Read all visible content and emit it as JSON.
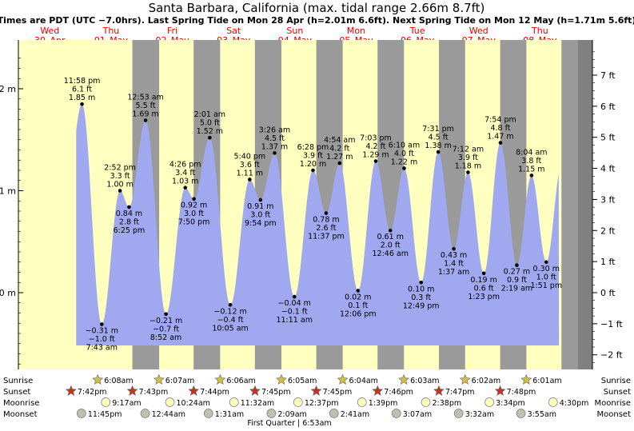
{
  "title": "Santa Barbara, California (max. tidal range 2.66m 8.7ft)",
  "subtitle": "Times are PDT (UTC −7.0hrs). Last Spring Tide on Mon 28 Apr (h=2.01m 6.6ft). Next Spring Tide on Mon 12 May (h=1.71m 5.6ft)",
  "colors": {
    "day": "#ffffc0",
    "night": "#9a9a9a",
    "tide": "#a0a8f0",
    "grid": "#000000",
    "day_label": "#e00000",
    "sun": "#d4c040",
    "sunset": "#c83020",
    "moonrise": "#ffffc0",
    "moonset": "#c0c0b0"
  },
  "days": [
    {
      "dow": "Wed",
      "date": "30–Apr"
    },
    {
      "dow": "Thu",
      "date": "01–May"
    },
    {
      "dow": "Fri",
      "date": "02–May"
    },
    {
      "dow": "Sat",
      "date": "03–May"
    },
    {
      "dow": "Sun",
      "date": "04–May"
    },
    {
      "dow": "Mon",
      "date": "05–May"
    },
    {
      "dow": "Tue",
      "date": "06–May"
    },
    {
      "dow": "Wed",
      "date": "07–May"
    },
    {
      "dow": "Thu",
      "date": "08–May"
    }
  ],
  "chart_data": {
    "type": "area",
    "x_unit": "hours from 30-Apr 00:00 PDT",
    "y_unit": "m",
    "ylim": [
      -0.75,
      2.45
    ],
    "left_ticks": [
      "2 m",
      "1 m",
      "0 m"
    ],
    "left_tick_values": [
      2,
      1,
      0
    ],
    "right_ticks": [
      "7 ft",
      "6 ft",
      "5 ft",
      "4 ft",
      "3 ft",
      "2 ft",
      "1 ft",
      "0 ft",
      "−1 ft",
      "−2 ft"
    ],
    "right_tick_values": [
      7,
      6,
      5,
      4,
      3,
      2,
      1,
      0,
      -1,
      -2
    ],
    "nights": [
      {
        "start": 43.7,
        "end": 54.2
      },
      {
        "start": 67.7,
        "end": 78.1
      },
      {
        "start": 91.7,
        "end": 102.1
      },
      {
        "start": 115.75,
        "end": 126.1
      },
      {
        "start": 139.75,
        "end": 150.1
      },
      {
        "start": 163.8,
        "end": 174.05
      },
      {
        "start": 187.8,
        "end": 198.05
      },
      {
        "start": 211.8,
        "end": 222.0
      },
      {
        "start": 235.8,
        "end": 999
      }
    ],
    "extremes": [
      {
        "t": 23.97,
        "h": 1.85,
        "time": "11:58 pm",
        "ft": "6.1 ft",
        "m": "1.85 m",
        "type": "high"
      },
      {
        "t": 31.72,
        "h": -0.31,
        "time": "7:43 am",
        "ft": "−1.0 ft",
        "m": "−0.31 m",
        "type": "low"
      },
      {
        "t": 38.87,
        "h": 1.0,
        "time": "2:52 pm",
        "ft": "3.3 ft",
        "m": "1.00 m",
        "type": "high"
      },
      {
        "t": 42.42,
        "h": 0.84,
        "time": "6:25 pm",
        "ft": "2.8 ft",
        "m": "0.84 m",
        "type": "low"
      },
      {
        "t": 48.88,
        "h": 1.69,
        "time": "12:53 am",
        "ft": "5.5 ft",
        "m": "1.69 m",
        "type": "high"
      },
      {
        "t": 56.87,
        "h": -0.21,
        "time": "8:52 am",
        "ft": "−0.7 ft",
        "m": "−0.21 m",
        "type": "low"
      },
      {
        "t": 64.43,
        "h": 1.03,
        "time": "4:26 pm",
        "ft": "3.4 ft",
        "m": "1.03 m",
        "type": "high"
      },
      {
        "t": 67.83,
        "h": 0.92,
        "time": "7:50 pm",
        "ft": "3.0 ft",
        "m": "0.92 m",
        "type": "low"
      },
      {
        "t": 74.02,
        "h": 1.52,
        "time": "2:01 am",
        "ft": "5.0 ft",
        "m": "1.52 m",
        "type": "high"
      },
      {
        "t": 82.08,
        "h": -0.12,
        "time": "10:05 am",
        "ft": "−0.4 ft",
        "m": "−0.12 m",
        "type": "low"
      },
      {
        "t": 89.67,
        "h": 1.11,
        "time": "5:40 pm",
        "ft": "3.6 ft",
        "m": "1.11 m",
        "type": "high"
      },
      {
        "t": 93.9,
        "h": 0.91,
        "time": "9:54 pm",
        "ft": "3.0 ft",
        "m": "0.91 m",
        "type": "low"
      },
      {
        "t": 99.43,
        "h": 1.37,
        "time": "3:26 am",
        "ft": "4.5 ft",
        "m": "1.37 m",
        "type": "high"
      },
      {
        "t": 107.18,
        "h": -0.04,
        "time": "11:11 am",
        "ft": "−0.1 ft",
        "m": "−0.04 m",
        "type": "low"
      },
      {
        "t": 114.47,
        "h": 1.2,
        "time": "6:28 pm",
        "ft": "3.9 ft",
        "m": "1.20 m",
        "type": "high"
      },
      {
        "t": 119.62,
        "h": 0.78,
        "time": "11:37 pm",
        "ft": "2.6 ft",
        "m": "0.78 m",
        "type": "low"
      },
      {
        "t": 124.9,
        "h": 1.27,
        "time": "4:54 am",
        "ft": "4.2 ft",
        "m": "1.27 m",
        "type": "high"
      },
      {
        "t": 132.1,
        "h": 0.02,
        "time": "12:06 pm",
        "ft": "0.1 ft",
        "m": "0.02 m",
        "type": "low"
      },
      {
        "t": 139.05,
        "h": 1.29,
        "time": "7:03 pm",
        "ft": "4.2 ft",
        "m": "1.29 m",
        "type": "high"
      },
      {
        "t": 144.77,
        "h": 0.61,
        "time": "12:46 am",
        "ft": "2.0 ft",
        "m": "0.61 m",
        "type": "low"
      },
      {
        "t": 150.17,
        "h": 1.22,
        "time": "6:10 am",
        "ft": "4.0 ft",
        "m": "1.22 m",
        "type": "high"
      },
      {
        "t": 156.82,
        "h": 0.1,
        "time": "12:49 pm",
        "ft": "0.3 ft",
        "m": "0.10 m",
        "type": "low"
      },
      {
        "t": 163.52,
        "h": 1.38,
        "time": "7:31 pm",
        "ft": "4.5 ft",
        "m": "1.38 m",
        "type": "high"
      },
      {
        "t": 169.62,
        "h": 0.43,
        "time": "1:37 am",
        "ft": "1.4 ft",
        "m": "0.43 m",
        "type": "low"
      },
      {
        "t": 175.2,
        "h": 1.18,
        "time": "7:12 am",
        "ft": "3.9 ft",
        "m": "1.18 m",
        "type": "high"
      },
      {
        "t": 181.38,
        "h": 0.19,
        "time": "1:23 pm",
        "ft": "0.6 ft",
        "m": "0.19 m",
        "type": "low"
      },
      {
        "t": 187.9,
        "h": 1.47,
        "time": "7:54 pm",
        "ft": "4.8 ft",
        "m": "1.47 m",
        "type": "high"
      },
      {
        "t": 194.32,
        "h": 0.27,
        "time": "2:19 am",
        "ft": "0.9 ft",
        "m": "0.27 m",
        "type": "low"
      },
      {
        "t": 200.07,
        "h": 1.15,
        "time": "8:04 am",
        "ft": "3.8 ft",
        "m": "1.15 m",
        "type": "high"
      },
      {
        "t": 205.85,
        "h": 0.3,
        "time": "1:51 pm",
        "ft": "1.0 ft",
        "m": "0.30 m",
        "type": "low"
      }
    ]
  },
  "astro": {
    "labels": {
      "sunrise": "Sunrise",
      "sunset": "Sunset",
      "moonrise": "Moonrise",
      "moonset": "Moonset"
    },
    "sunrise": [
      {
        "t": 30.13,
        "text": "6:08am"
      },
      {
        "t": 54.12,
        "text": "6:07am"
      },
      {
        "t": 78.1,
        "text": "6:06am"
      },
      {
        "t": 102.08,
        "text": "6:05am"
      },
      {
        "t": 126.07,
        "text": "6:04am"
      },
      {
        "t": 150.05,
        "text": "6:03am"
      },
      {
        "t": 174.03,
        "text": "6:02am"
      },
      {
        "t": 198.02,
        "text": "6:01am"
      }
    ],
    "sunset": [
      {
        "t": 19.7,
        "text": "7:42pm"
      },
      {
        "t": 43.72,
        "text": "7:43pm"
      },
      {
        "t": 67.73,
        "text": "7:44pm"
      },
      {
        "t": 91.75,
        "text": "7:45pm"
      },
      {
        "t": 115.75,
        "text": "7:45pm"
      },
      {
        "t": 139.77,
        "text": "7:46pm"
      },
      {
        "t": 163.78,
        "text": "7:47pm"
      },
      {
        "t": 187.8,
        "text": "7:48pm"
      }
    ],
    "moonrise": [
      {
        "t": 33.28,
        "text": "9:17am"
      },
      {
        "t": 58.4,
        "text": "10:24am"
      },
      {
        "t": 83.53,
        "text": "11:32am"
      },
      {
        "t": 108.62,
        "text": "12:37pm"
      },
      {
        "t": 133.65,
        "text": "1:39pm"
      },
      {
        "t": 158.63,
        "text": "2:38pm"
      },
      {
        "t": 183.57,
        "text": "3:34pm"
      },
      {
        "t": 208.5,
        "text": "4:30pm"
      }
    ],
    "moonset": [
      {
        "t": 23.75,
        "text": "11:45pm"
      },
      {
        "t": 48.73,
        "text": "12:44am"
      },
      {
        "t": 73.52,
        "text": "1:31am"
      },
      {
        "t": 98.15,
        "text": "2:09am"
      },
      {
        "t": 122.68,
        "text": "2:41am"
      },
      {
        "t": 147.12,
        "text": "3:07am"
      },
      {
        "t": 171.53,
        "text": "3:32am"
      },
      {
        "t": 195.92,
        "text": "3:55am"
      }
    ],
    "moon_phase": "First Quarter | 6:53am"
  }
}
